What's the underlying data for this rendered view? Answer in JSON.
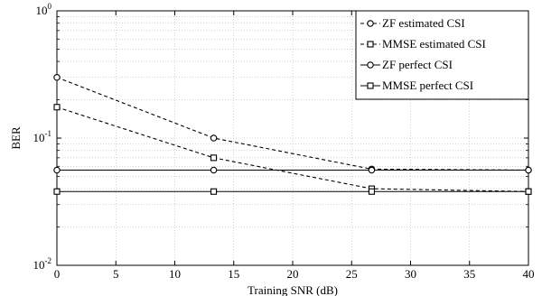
{
  "chart_data": {
    "type": "line",
    "xlabel": "Training SNR (dB)",
    "ylabel": "BER",
    "xlim": [
      0,
      40
    ],
    "ylim": [
      0.01,
      1
    ],
    "yscale": "log",
    "grid": true,
    "legend_position": "top-right",
    "x_ticks": [
      "0",
      "5",
      "10",
      "15",
      "20",
      "25",
      "30",
      "35",
      "40"
    ],
    "y_ticks": [
      {
        "base": "10",
        "exp": "-2",
        "value": 0.01
      },
      {
        "base": "10",
        "exp": "-1",
        "value": 0.1
      },
      {
        "base": "10",
        "exp": "0",
        "value": 1
      }
    ],
    "series": [
      {
        "name": "ZF estimated CSI",
        "marker": "circle",
        "dash": "dashed",
        "x": [
          0,
          13.3,
          26.7,
          40
        ],
        "y": [
          0.3,
          0.1,
          0.057,
          0.056
        ]
      },
      {
        "name": "MMSE estimated CSI",
        "marker": "square",
        "dash": "dashed",
        "x": [
          0,
          13.3,
          26.7,
          40
        ],
        "y": [
          0.175,
          0.07,
          0.04,
          0.038
        ]
      },
      {
        "name": "ZF perfect CSI",
        "marker": "circle",
        "dash": "solid",
        "x": [
          0,
          13.3,
          26.7,
          40
        ],
        "y": [
          0.056,
          0.056,
          0.056,
          0.056
        ]
      },
      {
        "name": "MMSE perfect CSI",
        "marker": "square",
        "dash": "solid",
        "x": [
          0,
          13.3,
          26.7,
          40
        ],
        "y": [
          0.038,
          0.038,
          0.038,
          0.038
        ]
      }
    ]
  }
}
